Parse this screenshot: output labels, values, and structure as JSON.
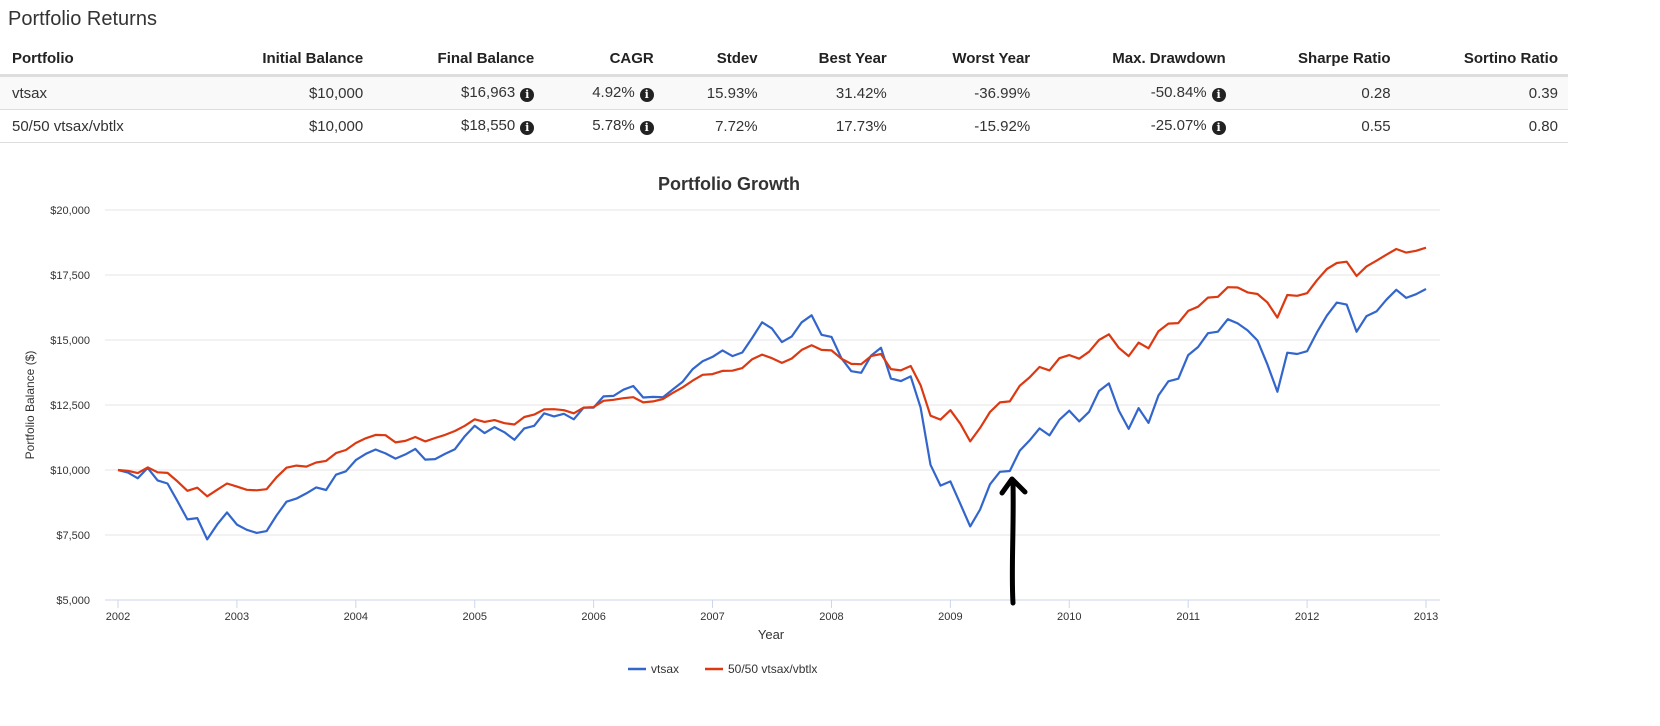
{
  "section_title": "Portfolio Returns",
  "table": {
    "columns": [
      "Portfolio",
      "Initial Balance",
      "Final Balance",
      "CAGR",
      "Stdev",
      "Best Year",
      "Worst Year",
      "Max. Drawdown",
      "Sharpe Ratio",
      "Sortino Ratio"
    ],
    "rows": [
      [
        "vtsax",
        "$10,000",
        "$16,963",
        "4.92%",
        "15.93%",
        "31.42%",
        "-36.99%",
        "-50.84%",
        "0.28",
        "0.39"
      ],
      [
        "50/50 vtsax/vbtlx",
        "$10,000",
        "$18,550",
        "5.78%",
        "7.72%",
        "17.73%",
        "-15.92%",
        "-25.07%",
        "0.55",
        "0.80"
      ]
    ],
    "info_icon_columns": [
      2,
      3,
      7
    ]
  },
  "chart_data": {
    "type": "line",
    "title": "Portfolio Growth",
    "xlabel": "Year",
    "ylabel": "Portfolio Balance ($)",
    "xlim": [
      2002,
      2013
    ],
    "ylim": [
      5000,
      20000
    ],
    "x_ticks": [
      "2002",
      "2003",
      "2004",
      "2005",
      "2006",
      "2007",
      "2008",
      "2009",
      "2010",
      "2011",
      "2012",
      "2013"
    ],
    "y_ticks": [
      "$5,000",
      "$7,500",
      "$10,000",
      "$12,500",
      "$15,000",
      "$17,500",
      "$20,000"
    ],
    "grid": true,
    "legend_position": "bottom",
    "x_start": "2002-01",
    "x_frequency": "monthly",
    "series": [
      {
        "name": "vtsax",
        "color": "#3366cc",
        "values": [
          10000,
          9900,
          9680,
          10080,
          9600,
          9480,
          8800,
          8100,
          8150,
          7330,
          7900,
          8370,
          7900,
          7700,
          7580,
          7650,
          8250,
          8780,
          8900,
          9100,
          9330,
          9230,
          9820,
          9950,
          10380,
          10620,
          10790,
          10640,
          10440,
          10600,
          10810,
          10400,
          10420,
          10620,
          10800,
          11300,
          11700,
          11420,
          11650,
          11450,
          11160,
          11600,
          11700,
          12180,
          12060,
          12160,
          11950,
          12400,
          12400,
          12830,
          12850,
          13090,
          13230,
          12790,
          12810,
          12800,
          13100,
          13400,
          13880,
          14180,
          14350,
          14600,
          14380,
          14520,
          15080,
          15680,
          15440,
          14920,
          15140,
          15680,
          15950,
          15200,
          15120,
          14300,
          13800,
          13740,
          14400,
          14700,
          13520,
          13420,
          13600,
          12400,
          10200,
          9400,
          9560,
          8700,
          7830,
          8480,
          9450,
          9930,
          9960,
          10740,
          11140,
          11600,
          11330,
          11930,
          12280,
          11870,
          12240,
          13040,
          13330,
          12290,
          11580,
          12380,
          11810,
          12870,
          13410,
          13510,
          14420,
          14730,
          15260,
          15320,
          15800,
          15640,
          15370,
          14980,
          14050,
          13010,
          14510,
          14460,
          14570,
          15300,
          15940,
          16440,
          16360,
          15320,
          15920,
          16100,
          16550,
          16930,
          16620,
          16760,
          16963
        ]
      },
      {
        "name": "50/50 vtsax/vbtlx",
        "color": "#dc3912",
        "values": [
          10000,
          9970,
          9880,
          10100,
          9910,
          9890,
          9560,
          9200,
          9320,
          8990,
          9240,
          9480,
          9360,
          9240,
          9220,
          9260,
          9720,
          10090,
          10170,
          10130,
          10290,
          10350,
          10650,
          10770,
          11040,
          11220,
          11350,
          11340,
          11060,
          11120,
          11270,
          11100,
          11230,
          11350,
          11500,
          11700,
          11950,
          11850,
          11920,
          11800,
          11750,
          12040,
          12130,
          12330,
          12340,
          12300,
          12180,
          12400,
          12420,
          12660,
          12700,
          12760,
          12800,
          12600,
          12640,
          12730,
          12970,
          13180,
          13440,
          13660,
          13690,
          13810,
          13820,
          13920,
          14260,
          14440,
          14300,
          14120,
          14290,
          14620,
          14800,
          14620,
          14600,
          14280,
          14080,
          14070,
          14380,
          14460,
          13880,
          13830,
          14000,
          13260,
          12090,
          11940,
          12300,
          11780,
          11100,
          11620,
          12230,
          12600,
          12640,
          13240,
          13560,
          13960,
          13830,
          14300,
          14420,
          14280,
          14550,
          15000,
          15220,
          14700,
          14380,
          14900,
          14680,
          15340,
          15630,
          15650,
          16120,
          16280,
          16630,
          16660,
          17030,
          17020,
          16830,
          16770,
          16440,
          15860,
          16730,
          16700,
          16800,
          17300,
          17730,
          17960,
          18010,
          17460,
          17830,
          18050,
          18280,
          18500,
          18360,
          18430,
          18550
        ]
      }
    ],
    "annotation": {
      "type": "hand-drawn arrow",
      "color": "#000000",
      "points_to": "2009-07"
    }
  }
}
